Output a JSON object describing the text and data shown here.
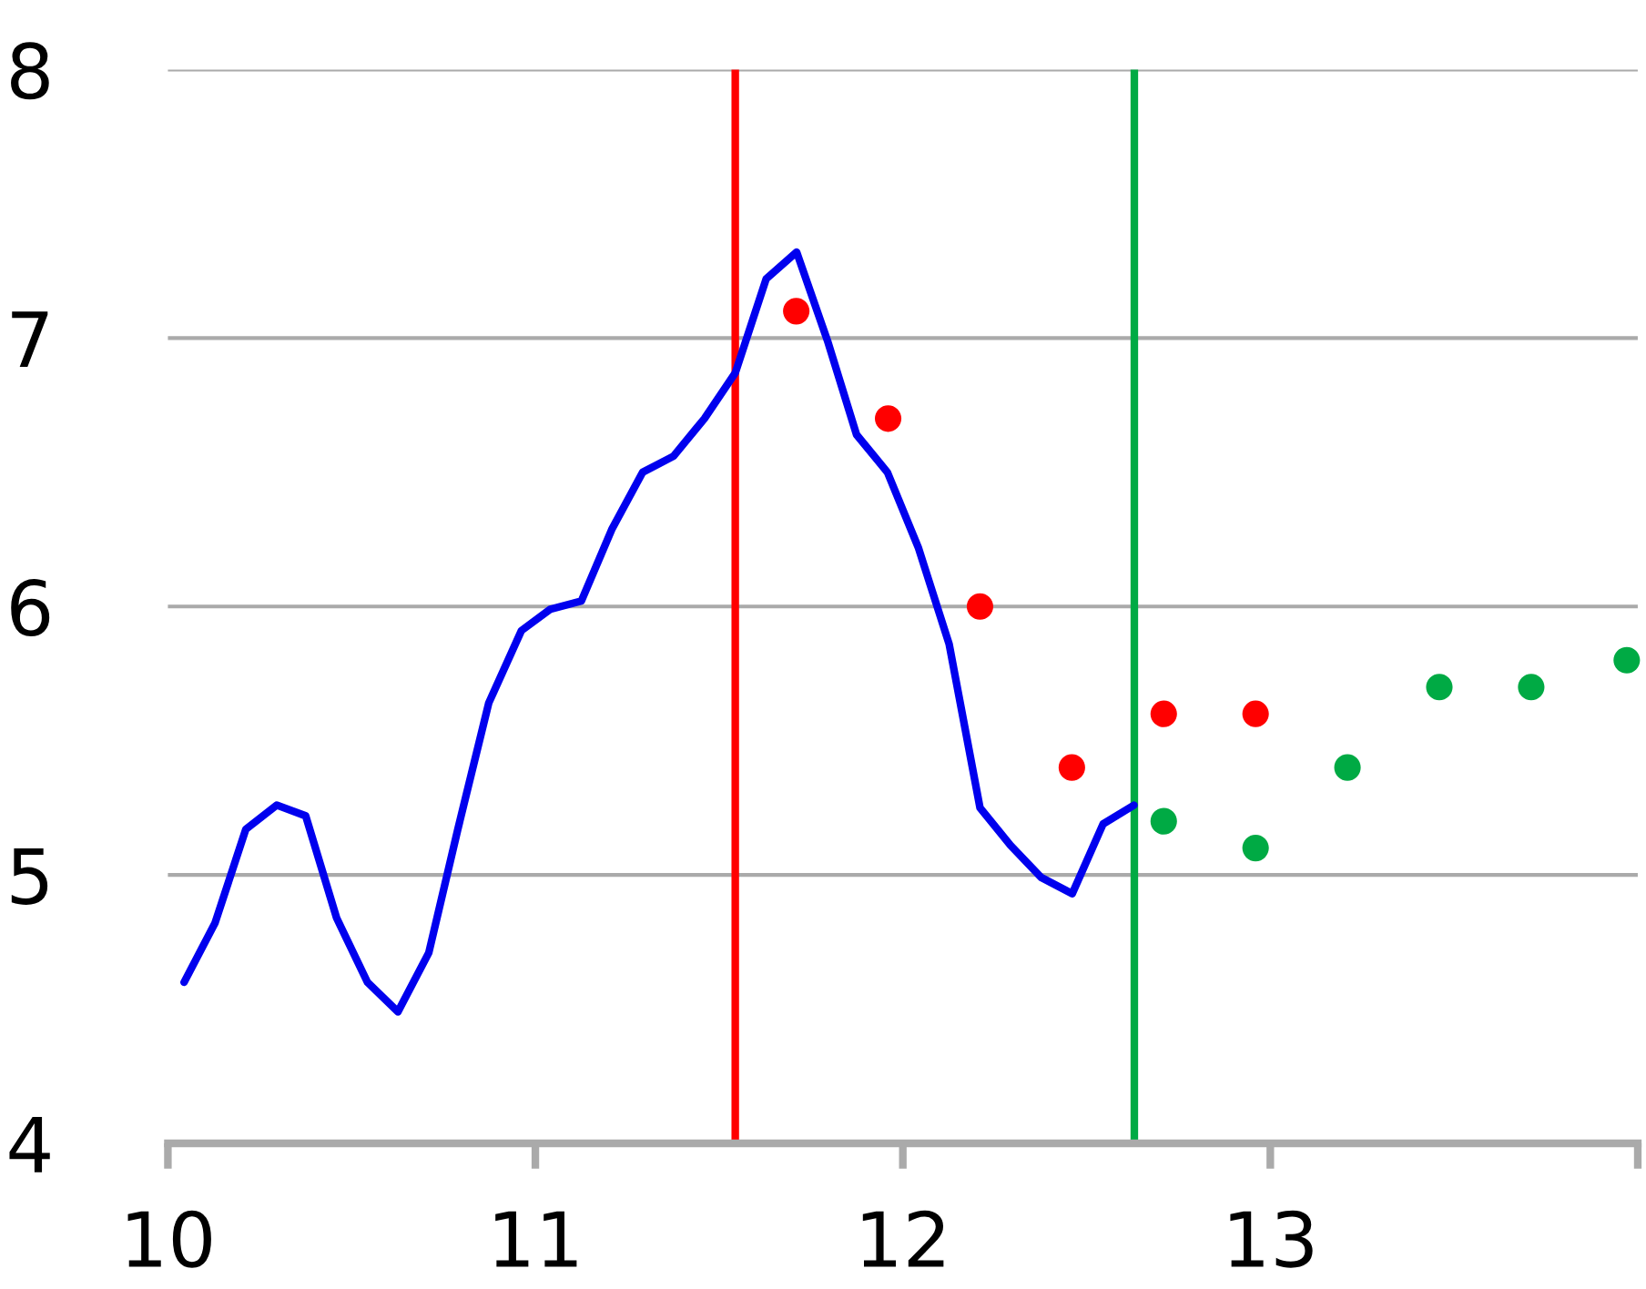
{
  "chart_data": {
    "type": "line",
    "xlim": [
      10,
      14
    ],
    "ylim": [
      4,
      8
    ],
    "xticks": [
      10,
      11,
      12,
      13,
      {
        "value": 14,
        "label": null
      }
    ],
    "yticks": [
      4,
      5,
      6,
      7,
      8
    ],
    "grid": "y",
    "legend": false,
    "marker": "none",
    "line_style": "solid",
    "series": [
      {
        "color": "#0000ee",
        "x": [
          10.044,
          10.128,
          10.212,
          10.296,
          10.375,
          10.459,
          10.543,
          10.626,
          10.71,
          10.789,
          10.873,
          10.962,
          11.041,
          11.125,
          11.209,
          11.292,
          11.376,
          11.46,
          11.544,
          11.628,
          11.711,
          11.795,
          11.874,
          11.958,
          12.042,
          12.126,
          12.21,
          12.293,
          12.377,
          12.461,
          12.545,
          12.629
        ],
        "values": [
          4.6,
          4.82,
          5.17,
          5.26,
          5.22,
          4.84,
          4.6,
          4.49,
          4.71,
          5.17,
          5.64,
          5.91,
          5.99,
          6.02,
          6.29,
          6.5,
          6.56,
          6.7,
          6.87,
          7.22,
          7.32,
          6.99,
          6.64,
          6.5,
          6.22,
          5.86,
          5.25,
          5.11,
          4.99,
          4.93,
          5.19,
          5.26
        ]
      },
      {
        "type": "scatter",
        "color": "#ff0000",
        "marker": "circle",
        "x": [
          11.71,
          11.96,
          12.21,
          12.46,
          12.71,
          12.96
        ],
        "values": [
          7.1,
          6.7,
          6.0,
          5.4,
          5.6,
          5.6
        ]
      },
      {
        "type": "scatter",
        "color": "#00aa44",
        "marker": "circle",
        "x": [
          12.71,
          12.96,
          13.21,
          13.46,
          13.71,
          13.97
        ],
        "values": [
          5.2,
          5.1,
          5.4,
          5.7,
          5.7,
          5.8
        ]
      }
    ],
    "ref_lines": [
      {
        "axis": "x",
        "value": 11.544,
        "color": "#ff0000"
      },
      {
        "axis": "x",
        "value": 12.63,
        "color": "#00aa44"
      }
    ]
  }
}
